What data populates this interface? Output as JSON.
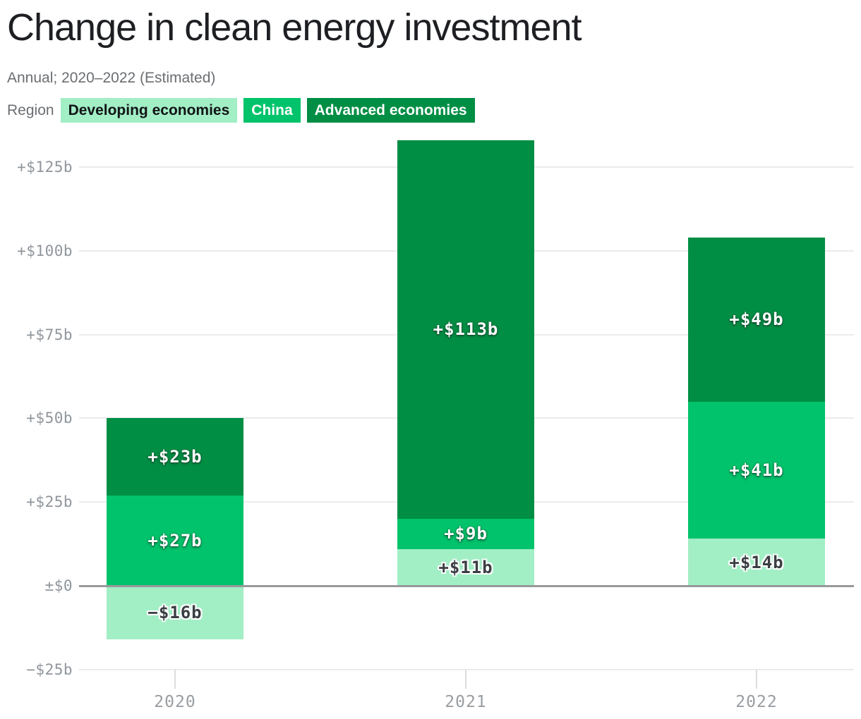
{
  "chart_data": {
    "type": "bar",
    "stacked": true,
    "title": "Change in clean energy investment",
    "subtitle": "Annual; 2020–2022 (Estimated)",
    "legend": {
      "label": "Region",
      "position": "top-left",
      "items": [
        {
          "name": "Developing economies",
          "color": "#a2eec5",
          "text_color": "#111416"
        },
        {
          "name": "China",
          "color": "#00c36b",
          "text_color": "#ffffff"
        },
        {
          "name": "Advanced economies",
          "color": "#008e44",
          "text_color": "#ffffff"
        }
      ]
    },
    "categories": [
      "2020",
      "2021",
      "2022"
    ],
    "series": [
      {
        "name": "Developing economies",
        "color": "#a2eec5",
        "halo": "dark",
        "values": [
          -16,
          11,
          14
        ],
        "labels": [
          "−$16b",
          "+$11b",
          "+$14b"
        ]
      },
      {
        "name": "China",
        "color": "#00c36b",
        "halo": "light",
        "values": [
          27,
          9,
          41
        ],
        "labels": [
          "+$27b",
          "+$9b",
          "+$41b"
        ]
      },
      {
        "name": "Advanced economies",
        "color": "#008e44",
        "halo": "light",
        "values": [
          23,
          113,
          49
        ],
        "labels": [
          "+$23b",
          "+$113b",
          "+$49b"
        ]
      }
    ],
    "y_axis": {
      "unit": "$ billions",
      "ylim": [
        -25,
        135
      ],
      "grid": true,
      "ticks": [
        {
          "label": "+$125b",
          "value": 125
        },
        {
          "label": "+$100b",
          "value": 100
        },
        {
          "label": "+$75b",
          "value": 75
        },
        {
          "label": "+$50b",
          "value": 50
        },
        {
          "label": "+$25b",
          "value": 25
        },
        {
          "label": "±$0",
          "value": 0
        },
        {
          "label": "−$25b",
          "value": -25
        }
      ]
    }
  }
}
